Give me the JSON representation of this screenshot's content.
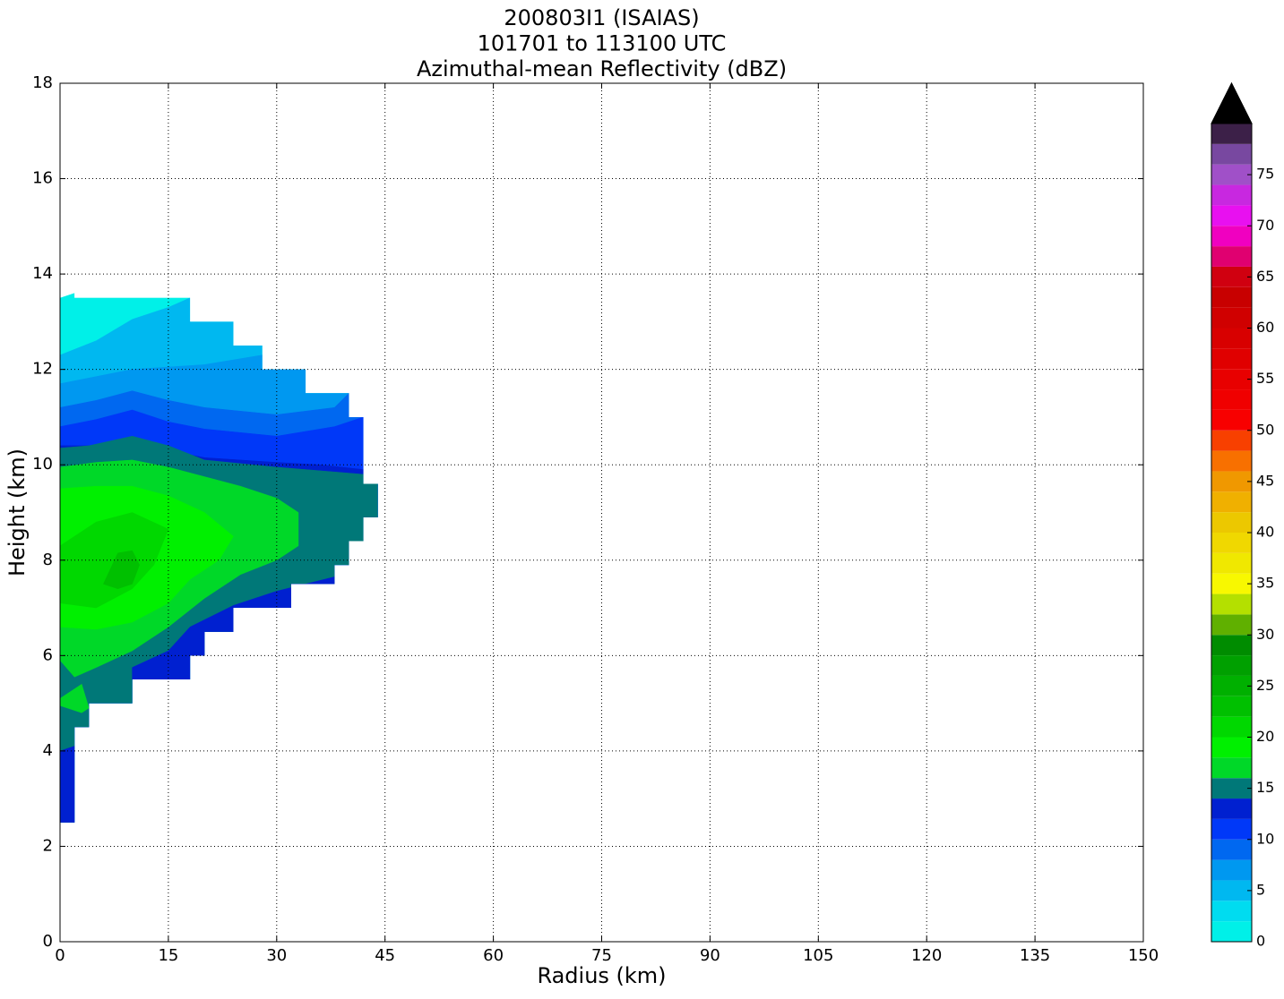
{
  "chart_data": {
    "type": "contourf",
    "title": [
      "200803I1 (ISAIAS)",
      "101701 to 113100 UTC",
      "Azimuthal-mean Reflectivity (dBZ)"
    ],
    "xlabel": "Radius (km)",
    "ylabel": "Height (km)",
    "xlim": [
      0,
      150
    ],
    "ylim": [
      0,
      18
    ],
    "xticks": [
      0,
      15,
      30,
      45,
      60,
      75,
      90,
      105,
      120,
      135,
      150
    ],
    "yticks": [
      0,
      2,
      4,
      6,
      8,
      10,
      12,
      14,
      16,
      18
    ],
    "grid": true,
    "colorbar": {
      "levels": [
        0,
        2,
        4,
        6,
        8,
        10,
        12,
        14,
        16,
        18,
        20,
        22,
        24,
        26,
        28,
        30,
        32,
        34,
        36,
        38,
        40,
        42,
        44,
        46,
        48,
        50,
        52,
        54,
        56,
        58,
        60,
        62,
        64,
        66,
        68,
        70,
        72,
        74,
        76,
        78,
        80
      ],
      "colors": [
        "#00f0e8",
        "#00dcf0",
        "#00b8f0",
        "#0098f0",
        "#0068f0",
        "#0038f8",
        "#0020d0",
        "#007878",
        "#00d828",
        "#00f000",
        "#00d800",
        "#00c000",
        "#00b000",
        "#00a000",
        "#008c00",
        "#60b000",
        "#b4e000",
        "#f8f800",
        "#f0e800",
        "#f0d800",
        "#ecc800",
        "#f0b000",
        "#f09800",
        "#f87000",
        "#f84000",
        "#f80000",
        "#f00000",
        "#e80000",
        "#e00000",
        "#d80000",
        "#d00000",
        "#c80000",
        "#d00010",
        "#e00070",
        "#f000c0",
        "#e810f0",
        "#c828e0",
        "#a050c8",
        "#7848a0",
        "#3c2048"
      ],
      "over_color": "#000000",
      "ticks": [
        0,
        5,
        10,
        15,
        20,
        25,
        30,
        35,
        40,
        45,
        50,
        55,
        60,
        65,
        70,
        75
      ]
    },
    "envelope": {
      "x": [
        0,
        2,
        2,
        18,
        18,
        24,
        24,
        28,
        28,
        34,
        34,
        40,
        40,
        42,
        42,
        44,
        44,
        42,
        42,
        40,
        40,
        38,
        38,
        32,
        32,
        24,
        24,
        20,
        20,
        18,
        18,
        10,
        10,
        4,
        4,
        2,
        2,
        0
      ],
      "y": [
        13.5,
        13.6,
        13.5,
        13.5,
        13.0,
        13.0,
        12.5,
        12.5,
        12.0,
        12.0,
        11.5,
        11.5,
        11.0,
        11.0,
        9.6,
        9.6,
        8.9,
        8.9,
        8.4,
        8.4,
        7.9,
        7.9,
        7.5,
        7.5,
        7.0,
        7.0,
        6.5,
        6.5,
        6.0,
        6.0,
        5.5,
        5.5,
        5.0,
        5.0,
        4.5,
        4.5,
        2.5,
        2.5
      ]
    },
    "regions": [
      {
        "level": 0,
        "x": [
          0,
          2,
          2,
          18,
          18,
          24,
          24,
          28,
          28,
          34,
          34,
          40,
          40,
          42,
          42,
          44,
          44,
          42,
          42,
          40,
          40,
          38,
          38,
          32,
          32,
          24,
          24,
          20,
          20,
          18,
          18,
          10,
          10,
          4,
          4,
          2,
          2,
          0
        ],
        "y": [
          13.5,
          13.6,
          13.5,
          13.5,
          13.0,
          13.0,
          12.5,
          12.5,
          12.0,
          12.0,
          11.5,
          11.5,
          11.0,
          11.0,
          9.6,
          9.6,
          8.9,
          8.9,
          8.4,
          8.4,
          7.9,
          7.9,
          7.5,
          7.5,
          7.0,
          7.0,
          6.5,
          6.5,
          6.0,
          6.0,
          5.5,
          5.5,
          5.0,
          5.0,
          4.5,
          4.5,
          2.5,
          2.5
        ]
      },
      {
        "level": 4,
        "x": [
          0,
          5,
          10,
          15,
          18,
          44,
          44,
          0
        ],
        "y": [
          12.3,
          12.6,
          13.05,
          13.3,
          13.5,
          13.5,
          2.5,
          2.5
        ]
      },
      {
        "level": 6,
        "x": [
          0,
          10,
          20,
          28,
          34,
          44,
          44,
          0
        ],
        "y": [
          11.7,
          12.0,
          12.1,
          12.3,
          12.5,
          12.5,
          2.5,
          2.5
        ]
      },
      {
        "level": 8,
        "x": [
          0,
          5,
          10,
          15,
          20,
          30,
          38,
          40,
          44,
          44,
          0
        ],
        "y": [
          11.2,
          11.35,
          11.55,
          11.35,
          11.2,
          11.05,
          11.2,
          11.5,
          11.5,
          2.5,
          2.5
        ]
      },
      {
        "level": 10,
        "x": [
          0,
          5,
          10,
          15,
          20,
          30,
          38,
          42,
          44,
          44,
          0
        ],
        "y": [
          10.8,
          10.95,
          11.15,
          10.9,
          10.75,
          10.6,
          10.8,
          11.0,
          11.0,
          2.5,
          2.5
        ]
      },
      {
        "level": 12,
        "x": [
          0,
          5,
          10,
          15,
          20,
          30,
          36,
          42,
          44,
          44,
          0
        ],
        "y": [
          10.4,
          10.4,
          10.55,
          10.3,
          10.15,
          10.05,
          10.0,
          9.9,
          9.9,
          2.5,
          2.5
        ]
      },
      {
        "level": 14,
        "x": [
          0,
          4,
          10,
          15,
          20,
          30,
          42,
          44,
          44,
          0
        ],
        "y": [
          10.35,
          10.4,
          10.6,
          10.4,
          10.1,
          9.95,
          9.8,
          9.8,
          2.5,
          2.5
        ]
      },
      {
        "level": 16,
        "x": [
          0,
          5,
          10,
          15,
          20,
          25,
          30,
          33,
          33,
          30,
          25,
          20,
          15,
          10,
          5,
          2,
          0
        ],
        "y": [
          9.95,
          10.05,
          10.1,
          9.95,
          9.75,
          9.55,
          9.3,
          9.0,
          8.3,
          8.0,
          7.7,
          7.2,
          6.6,
          6.1,
          5.75,
          5.55,
          5.9
        ]
      },
      {
        "level": 16,
        "x": [
          0,
          3,
          4,
          3,
          0
        ],
        "y": [
          5.1,
          5.4,
          4.9,
          4.8,
          4.95
        ]
      },
      {
        "level": 18,
        "x": [
          0,
          5,
          10,
          15,
          20,
          24,
          22,
          18,
          15,
          10,
          5,
          0
        ],
        "y": [
          9.5,
          9.55,
          9.55,
          9.35,
          9.0,
          8.5,
          8.0,
          7.6,
          7.1,
          6.7,
          6.55,
          6.6
        ]
      },
      {
        "level": 20,
        "x": [
          0,
          5,
          10,
          15,
          13,
          10,
          5,
          0
        ],
        "y": [
          8.3,
          8.8,
          9.0,
          8.65,
          7.9,
          7.4,
          7.0,
          7.1
        ]
      },
      {
        "level": 22,
        "x": [
          6,
          8,
          10,
          11,
          10,
          8
        ],
        "y": [
          7.5,
          8.15,
          8.2,
          7.9,
          7.5,
          7.4
        ]
      },
      {
        "level": 12,
        "x": [
          10,
          18,
          18,
          20,
          20,
          24,
          24,
          32,
          32,
          38,
          38,
          34,
          30,
          24,
          20,
          18,
          15,
          10
        ],
        "y": [
          5.5,
          5.5,
          6.0,
          6.0,
          6.5,
          6.5,
          7.0,
          7.0,
          7.5,
          7.5,
          7.65,
          7.5,
          7.35,
          7.05,
          6.75,
          6.6,
          6.1,
          5.75
        ]
      },
      {
        "level": 12,
        "x": [
          0,
          2,
          2,
          0
        ],
        "y": [
          2.5,
          2.5,
          4.1,
          4.0
        ]
      }
    ]
  }
}
